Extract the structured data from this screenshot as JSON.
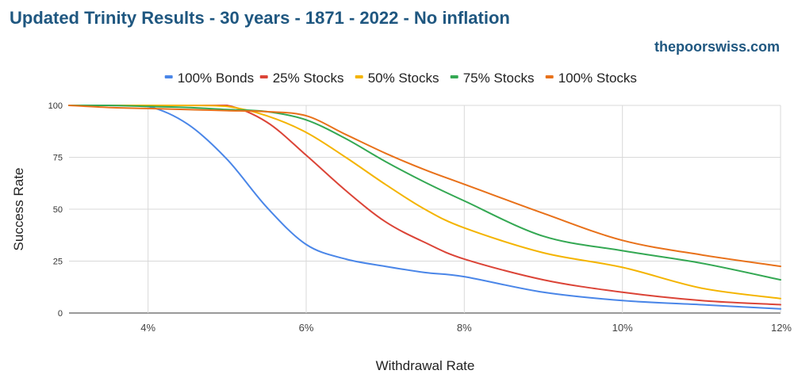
{
  "chart_data": {
    "type": "line",
    "title": "Updated Trinity Results - 30 years - 1871 - 2022 - No inflation",
    "watermark": "thepoorswiss.com",
    "xlabel": "Withdrawal Rate",
    "ylabel": "Success Rate",
    "xlim": [
      3,
      12
    ],
    "ylim": [
      0,
      100
    ],
    "x_ticks": [
      4,
      6,
      8,
      10,
      12
    ],
    "x_tick_labels": [
      "4%",
      "6%",
      "8%",
      "10%",
      "12%"
    ],
    "y_ticks": [
      0,
      25,
      50,
      75,
      100
    ],
    "y_tick_labels": [
      "0",
      "25",
      "50",
      "75",
      "100"
    ],
    "legend_position": "top-center",
    "series": [
      {
        "name": "100% Bonds",
        "color": "#4a86e8",
        "x": [
          3,
          3.5,
          4,
          4.5,
          5,
          5.5,
          6,
          6.5,
          7,
          7.5,
          8,
          9,
          10,
          11,
          12
        ],
        "y": [
          100,
          100,
          99.5,
          91,
          74,
          51,
          33,
          26,
          22.5,
          19.5,
          17.5,
          10,
          6,
          4,
          2
        ]
      },
      {
        "name": "25% Stocks",
        "color": "#db4437",
        "x": [
          3,
          3.5,
          4,
          4.5,
          5,
          5.5,
          6,
          6.5,
          7,
          7.5,
          8,
          9,
          10,
          11,
          12
        ],
        "y": [
          100,
          100,
          100,
          100,
          100,
          92,
          76,
          59,
          44,
          34,
          26,
          16,
          10,
          6,
          4
        ]
      },
      {
        "name": "50% Stocks",
        "color": "#f4b400",
        "x": [
          3,
          3.5,
          4,
          4.5,
          5,
          5.5,
          6,
          6.5,
          7,
          7.5,
          8,
          9,
          10,
          11,
          12
        ],
        "y": [
          100,
          100,
          100,
          100,
          99.5,
          95,
          87,
          75,
          62,
          50,
          41,
          29,
          22,
          12,
          7
        ]
      },
      {
        "name": "75% Stocks",
        "color": "#34a853",
        "x": [
          3,
          3.5,
          4,
          4.5,
          5,
          5.5,
          6,
          6.5,
          7,
          7.5,
          8,
          9,
          10,
          11,
          12
        ],
        "y": [
          100,
          100,
          99.5,
          99,
          98,
          97,
          93,
          84,
          73,
          63,
          54,
          37,
          30,
          24,
          16
        ]
      },
      {
        "name": "100% Stocks",
        "color": "#e8711a",
        "x": [
          3,
          3.5,
          4,
          4.5,
          5,
          5.5,
          6,
          6.5,
          7,
          7.5,
          8,
          9,
          10,
          11,
          12
        ],
        "y": [
          100,
          99,
          98.5,
          98,
          97.5,
          97,
          95,
          86,
          77,
          69,
          62,
          48,
          35,
          28,
          22.5
        ]
      }
    ]
  }
}
